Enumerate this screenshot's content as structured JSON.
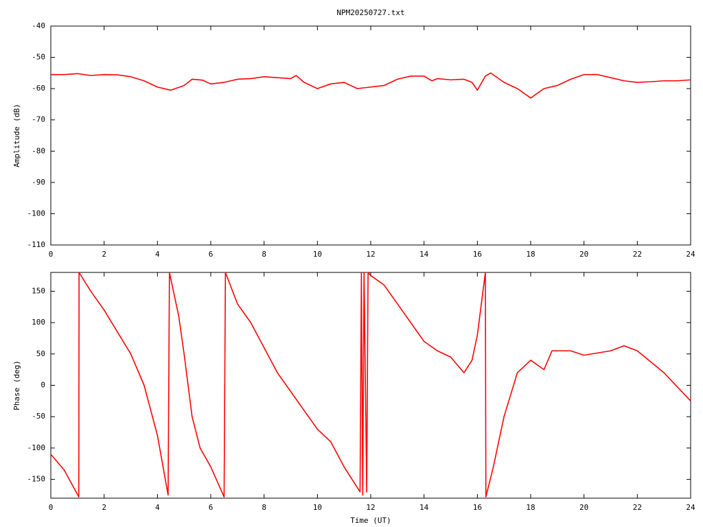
{
  "chart_data": [
    {
      "type": "line",
      "title": "NPM20250727.txt",
      "y_label": "Amplitude (dB)",
      "color": "#ff0000",
      "xlim": [
        0,
        24
      ],
      "xticks": [
        0,
        2,
        4,
        6,
        8,
        10,
        12,
        14,
        16,
        18,
        20,
        22,
        24
      ],
      "ylim": [
        -110,
        -40
      ],
      "yticks": [
        -40,
        -50,
        -60,
        -70,
        -80,
        -90,
        -100,
        -110
      ],
      "x": [
        0,
        0.5,
        1,
        1.5,
        2,
        2.5,
        3,
        3.5,
        4,
        4.5,
        5,
        5.3,
        5.7,
        6,
        6.5,
        7,
        7.5,
        8,
        8.5,
        9,
        9.2,
        9.5,
        10,
        10.5,
        11,
        11.5,
        12,
        12.5,
        13,
        13.5,
        14,
        14.3,
        14.5,
        15,
        15.5,
        15.8,
        16,
        16.3,
        16.5,
        17,
        17.5,
        18,
        18.5,
        19,
        19.5,
        20,
        20.5,
        21,
        21.5,
        22,
        22.5,
        23,
        23.5,
        24
      ],
      "values": [
        -55.5,
        -55.5,
        -55.2,
        -55.8,
        -55.5,
        -55.6,
        -56.2,
        -57.5,
        -59.5,
        -60.5,
        -59,
        -57,
        -57.3,
        -58.5,
        -58,
        -57,
        -56.8,
        -56.2,
        -56.5,
        -56.8,
        -55.8,
        -58,
        -60,
        -58.5,
        -58,
        -60,
        -59.5,
        -59,
        -57,
        -56,
        -56,
        -57.5,
        -56.8,
        -57.2,
        -57,
        -58,
        -60.5,
        -56,
        -55,
        -58,
        -60,
        -63,
        -60,
        -59,
        -57,
        -55.5,
        -55.5,
        -56.5,
        -57.5,
        -58,
        -57.8,
        -57.5,
        -57.5,
        -57.2
      ]
    },
    {
      "type": "line",
      "x_label": "Time (UT)",
      "y_label": "Phase (deg)",
      "color": "#ff0000",
      "xlim": [
        0,
        24
      ],
      "xticks": [
        0,
        2,
        4,
        6,
        8,
        10,
        12,
        14,
        16,
        18,
        20,
        22,
        24
      ],
      "ylim": [
        -180,
        180
      ],
      "yticks": [
        -150,
        -100,
        -50,
        0,
        50,
        100,
        150
      ],
      "x": [
        0,
        0.5,
        1.05,
        1.06,
        1.5,
        2,
        2.5,
        3,
        3.5,
        4,
        4.4,
        4.45,
        4.8,
        5,
        5.3,
        5.6,
        6,
        6.5,
        6.55,
        7,
        7.5,
        8,
        8.5,
        9,
        9.5,
        10,
        10.5,
        11,
        11.3,
        11.6,
        11.65,
        11.7,
        11.75,
        11.85,
        11.9,
        12,
        12.5,
        13,
        13.5,
        14,
        14.5,
        15,
        15.5,
        15.8,
        16,
        16.3,
        16.32,
        16.6,
        17,
        17.5,
        18,
        18.5,
        18.8,
        19.5,
        20,
        21,
        21.5,
        22,
        23,
        24
      ],
      "values": [
        -110,
        -135,
        -178,
        180,
        150,
        120,
        85,
        50,
        0,
        -80,
        -175,
        180,
        110,
        50,
        -50,
        -100,
        -130,
        -178,
        180,
        130,
        100,
        60,
        20,
        -10,
        -40,
        -70,
        -90,
        -130,
        -150,
        -170,
        180,
        -175,
        180,
        -170,
        180,
        175,
        160,
        130,
        100,
        70,
        55,
        45,
        20,
        40,
        80,
        180,
        -178,
        -130,
        -50,
        20,
        40,
        25,
        55,
        55,
        48,
        55,
        63,
        55,
        20,
        -25
      ]
    }
  ]
}
